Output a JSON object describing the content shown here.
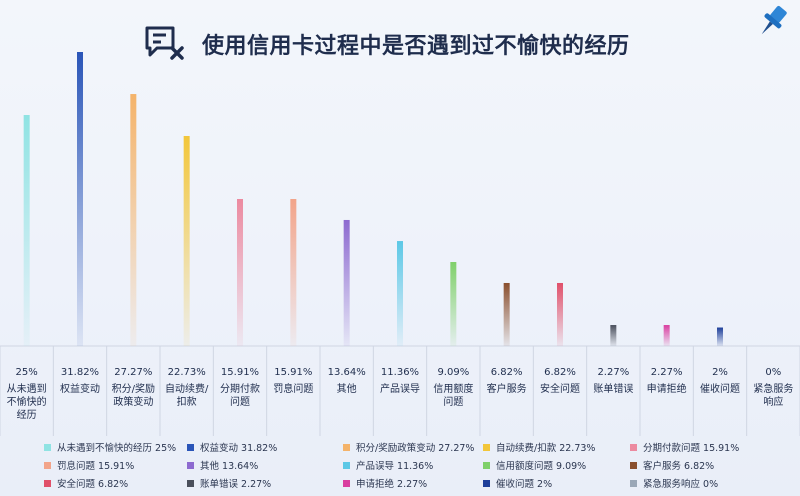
{
  "header": {
    "title": "使用信用卡过程中是否遇到过不愉快的经历",
    "title_icon": "message-x-icon",
    "pin_icon": "pin-icon"
  },
  "chart_data": {
    "type": "bar",
    "ylim": [
      0,
      31.82
    ],
    "categories": [
      {
        "label_lines": [
          "从未遇到",
          "不愉快的",
          "经历"
        ],
        "legend": "从未遇到不愉快的经历 25%",
        "value": 25,
        "value_label": "25%",
        "color": "#8fe3e3"
      },
      {
        "label_lines": [
          "权益变动"
        ],
        "legend": "权益变动 31.82%",
        "value": 31.82,
        "value_label": "31.82%",
        "color": "#2a55b8"
      },
      {
        "label_lines": [
          "积分/奖励",
          "政策变动"
        ],
        "legend": "积分/奖励政策变动 27.27%",
        "value": 27.27,
        "value_label": "27.27%",
        "color": "#f4b36a"
      },
      {
        "label_lines": [
          "自动续费/",
          "扣款"
        ],
        "legend": "自动续费/扣款 22.73%",
        "value": 22.73,
        "value_label": "22.73%",
        "color": "#f2c63a"
      },
      {
        "label_lines": [
          "分期付款",
          "问题"
        ],
        "legend": "分期付款问题 15.91%",
        "value": 15.91,
        "value_label": "15.91%",
        "color": "#ec8aa0"
      },
      {
        "label_lines": [
          "罚息问题"
        ],
        "legend": "罚息问题 15.91%",
        "value": 15.91,
        "value_label": "15.91%",
        "color": "#f2a48a"
      },
      {
        "label_lines": [
          "其他"
        ],
        "legend": "其他 13.64%",
        "value": 13.64,
        "value_label": "13.64%",
        "color": "#8d6ad0"
      },
      {
        "label_lines": [
          "产品误导"
        ],
        "legend": "产品误导 11.36%",
        "value": 11.36,
        "value_label": "11.36%",
        "color": "#5cc8e6"
      },
      {
        "label_lines": [
          "信用额度",
          "问题"
        ],
        "legend": "信用额度问题 9.09%",
        "value": 9.09,
        "value_label": "9.09%",
        "color": "#7fd06a"
      },
      {
        "label_lines": [
          "客户服务"
        ],
        "legend": "客户服务 6.82%",
        "value": 6.82,
        "value_label": "6.82%",
        "color": "#8a4f2e"
      },
      {
        "label_lines": [
          "安全问题"
        ],
        "legend": "安全问题 6.82%",
        "value": 6.82,
        "value_label": "6.82%",
        "color": "#e0506a"
      },
      {
        "label_lines": [
          "账单错误"
        ],
        "legend": "账单错误 2.27%",
        "value": 2.27,
        "value_label": "2.27%",
        "color": "#4a4f5c"
      },
      {
        "label_lines": [
          "申请拒绝"
        ],
        "legend": "申请拒绝 2.27%",
        "value": 2.27,
        "value_label": "2.27%",
        "color": "#d93fa0"
      },
      {
        "label_lines": [
          "催收问题"
        ],
        "legend": "催收问题 2%",
        "value": 2,
        "value_label": "2%",
        "color": "#1e3f9a"
      },
      {
        "label_lines": [
          "紧急服务",
          "响应"
        ],
        "legend": "紧急服务响应 0%",
        "value": 0,
        "value_label": "0%",
        "color": "#9aa7b7"
      }
    ]
  }
}
